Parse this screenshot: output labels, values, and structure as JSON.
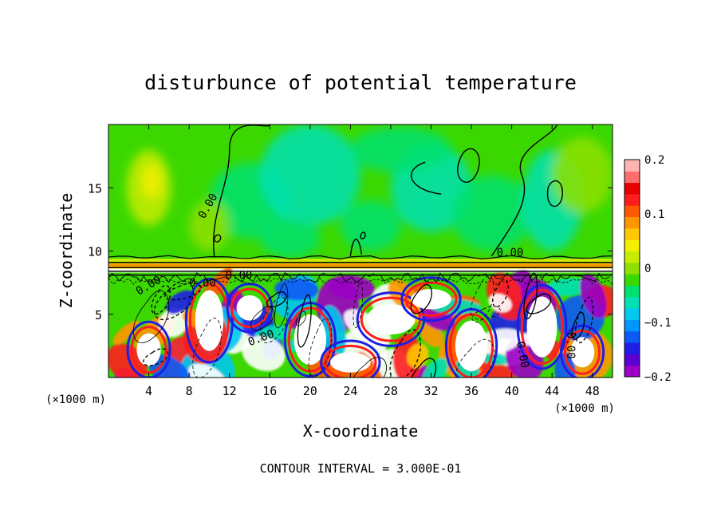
{
  "chart_data": {
    "type": "heatmap",
    "title": "disturbunce of potential temperature",
    "xlabel": "X-coordinate",
    "ylabel": "Z-coordinate",
    "x_unit": "(×1000 m)",
    "x_unit_right": "(×1000 m)",
    "xlim": [
      0,
      50
    ],
    "ylim": [
      0,
      20
    ],
    "xticks": [
      4,
      8,
      12,
      16,
      20,
      24,
      28,
      32,
      36,
      40,
      44,
      48
    ],
    "xtick_labels": [
      "4",
      "8",
      "12",
      "16",
      "20",
      "24",
      "28",
      "32",
      "36",
      "40",
      "44",
      "48"
    ],
    "yticks": [
      5,
      10,
      15
    ],
    "ytick_labels": [
      "5",
      "10",
      "15"
    ],
    "colorbar": {
      "range": [
        -0.2,
        0.2
      ],
      "ticks": [
        0.2,
        0.1,
        0,
        -0.1,
        -0.2
      ],
      "tick_labels": [
        "0.2",
        "0.1",
        "0",
        "−0.1",
        "−0.2"
      ],
      "colors": [
        "#9b00c4",
        "#5a00d0",
        "#1e1ee6",
        "#0a5af5",
        "#0096ff",
        "#00c8f0",
        "#00e0b4",
        "#00e070",
        "#3ad800",
        "#8ee000",
        "#c8ec00",
        "#f5f000",
        "#ffc800",
        "#ff9600",
        "#ff5a00",
        "#ff1e1e",
        "#e60000",
        "#ff6e6e",
        "#ffb4b4"
      ]
    },
    "contour_labels": [
      "0.00",
      "0.00",
      "0.00",
      "0.00",
      "0.00",
      "0.00",
      "0.00",
      "0.00"
    ],
    "contour_interval_text": "CONTOUR INTERVAL = 3.000E-01",
    "grid": false,
    "legend": "right colorbar"
  }
}
